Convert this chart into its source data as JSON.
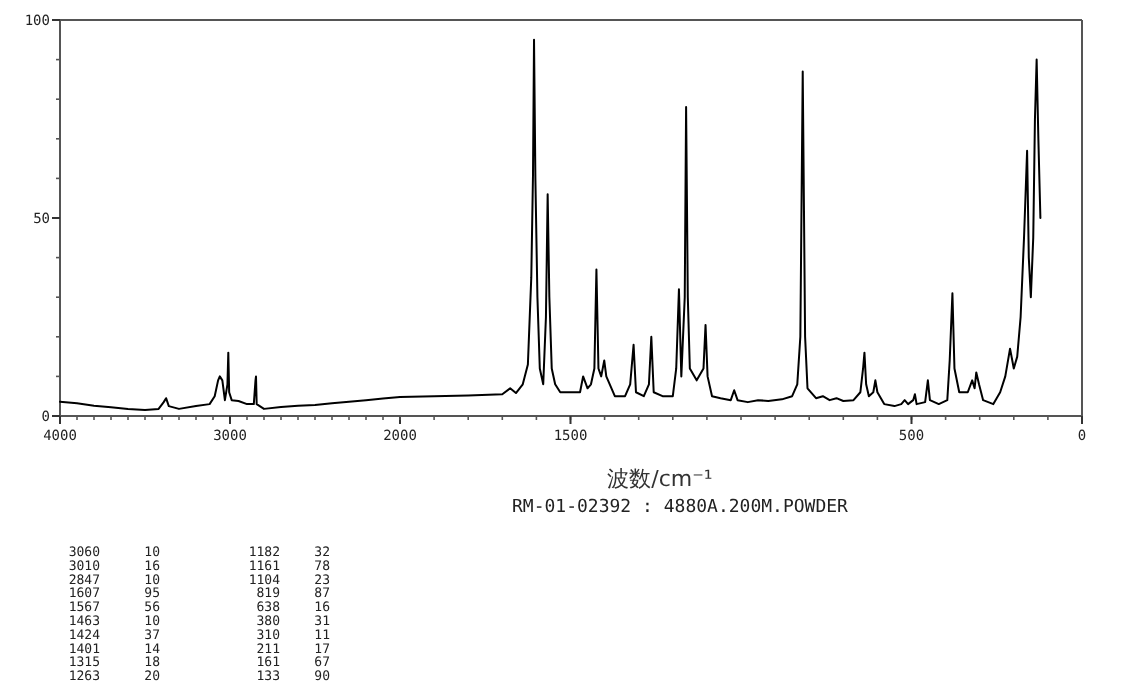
{
  "chart_data": [
    {
      "type": "line",
      "xlim": [
        4000,
        2000
      ],
      "ylim": [
        0,
        100
      ],
      "xticks": [
        4000,
        3000,
        2000
      ],
      "yticks": [
        0,
        50,
        100
      ],
      "x": [
        4000,
        3900,
        3800,
        3700,
        3600,
        3500,
        3420,
        3390,
        3376,
        3360,
        3300,
        3200,
        3120,
        3090,
        3070,
        3060,
        3045,
        3030,
        3015,
        3010,
        3005,
        2990,
        2950,
        2900,
        2860,
        2850,
        2847,
        2843,
        2800,
        2700,
        2600,
        2500,
        2400,
        2300,
        2200,
        2100,
        2000
      ],
      "series": [
        {
          "color": "#000000",
          "values": [
            3.6,
            3.2,
            2.6,
            2.2,
            1.8,
            1.5,
            1.8,
            3.5,
            4.5,
            2.5,
            1.8,
            2.5,
            3,
            5,
            9,
            10,
            9,
            4,
            8,
            16,
            6,
            4,
            3.8,
            3,
            3,
            9,
            10,
            3,
            1.8,
            2.3,
            2.6,
            2.8,
            3.2,
            3.6,
            4,
            4.4,
            4.8
          ]
        }
      ],
      "annotations": [
        "3060 10 1182 32",
        "3010 16 1161 78",
        "2847 10 1104 23",
        "1607 95 819 87",
        "1567 56 638 16",
        "1463 10 380 31",
        "1424 37 310 11",
        "1401 14 211 17",
        "1315 18 161 67",
        "1263 20 133 90"
      ]
    },
    {
      "type": "line",
      "xlabel": "波数/cm⁻¹",
      "xlim": [
        2000,
        0
      ],
      "ylim": [
        0,
        100
      ],
      "xticks": [
        1500,
        500,
        0
      ],
      "tick_labels": "x",
      "x": [
        2000,
        1900,
        1800,
        1700,
        1677,
        1660,
        1640,
        1625,
        1615,
        1610,
        1607,
        1603,
        1597,
        1590,
        1580,
        1572,
        1567,
        1562,
        1555,
        1545,
        1530,
        1500,
        1472,
        1463,
        1450,
        1440,
        1430,
        1424,
        1418,
        1410,
        1401,
        1395,
        1370,
        1340,
        1325,
        1315,
        1308,
        1285,
        1270,
        1263,
        1256,
        1230,
        1200,
        1190,
        1182,
        1175,
        1165,
        1161,
        1156,
        1150,
        1130,
        1110,
        1104,
        1098,
        1085,
        1060,
        1030,
        1020,
        1010,
        980,
        950,
        920,
        880,
        850,
        835,
        826,
        819,
        812,
        805,
        780,
        760,
        740,
        720,
        700,
        670,
        650,
        642,
        638,
        633,
        625,
        612,
        606,
        600,
        580,
        550,
        530,
        520,
        510,
        495,
        490,
        485,
        460,
        452,
        446,
        420,
        395,
        388,
        380,
        374,
        360,
        335,
        322,
        315,
        310,
        302,
        290,
        260,
        240,
        225,
        211,
        200,
        190,
        180,
        170,
        161,
        156,
        150,
        143,
        138,
        133,
        128,
        122
      ],
      "series": [
        {
          "color": "#000000",
          "values": [
            4.8,
            5,
            5.2,
            5.5,
            7,
            5.8,
            8,
            13,
            35,
            61,
            95,
            60,
            30,
            12,
            8,
            25,
            56,
            30,
            12,
            8,
            6,
            6,
            6,
            10,
            7,
            8,
            12,
            37,
            12,
            10,
            14,
            10,
            5,
            5,
            8,
            18,
            6,
            5,
            8,
            20,
            6,
            5,
            5,
            12,
            32,
            10,
            30,
            78,
            30,
            12,
            9,
            12,
            23,
            10,
            5,
            4.5,
            4,
            6.5,
            4,
            3.5,
            4,
            3.8,
            4.2,
            5,
            8,
            20,
            87,
            20,
            7,
            4.5,
            5,
            4,
            4.5,
            3.8,
            4,
            6,
            12,
            16,
            8,
            5,
            6,
            9,
            6,
            3,
            2.5,
            3,
            4,
            3,
            4,
            5.5,
            3,
            3.5,
            9,
            4,
            3,
            4,
            14,
            31,
            12,
            6,
            6,
            9,
            7,
            11,
            8,
            4,
            3,
            6,
            10,
            17,
            12,
            15,
            25,
            45,
            67,
            40,
            30,
            45,
            75,
            90,
            70,
            50
          ]
        }
      ],
      "annotations": [
        "RM-01-02392 : 4880A.200M.POWDER"
      ]
    }
  ]
}
